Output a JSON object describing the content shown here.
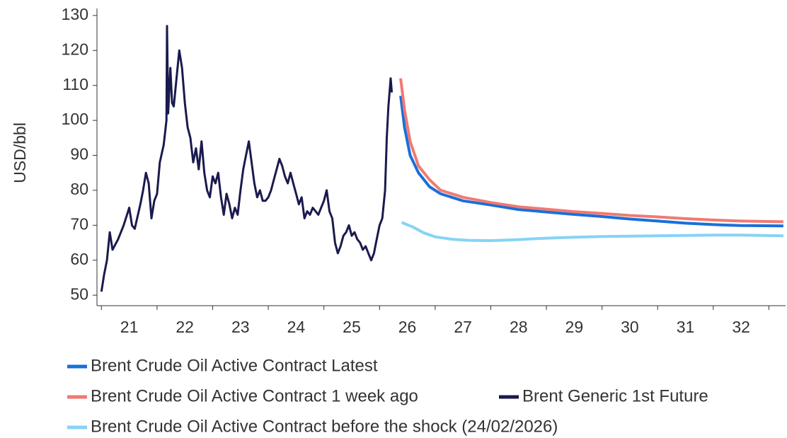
{
  "chart_data": {
    "type": "line",
    "y_label": "USD/bbl",
    "xlim": [
      20.92,
      33.3
    ],
    "xticks": [
      {
        "value": 21.5,
        "label": "21"
      },
      {
        "value": 22.5,
        "label": "22"
      },
      {
        "value": 23.5,
        "label": "23"
      },
      {
        "value": 24.5,
        "label": "24"
      },
      {
        "value": 25.5,
        "label": "25"
      },
      {
        "value": 26.5,
        "label": "26"
      },
      {
        "value": 27.5,
        "label": "27"
      },
      {
        "value": 28.5,
        "label": "28"
      },
      {
        "value": 29.5,
        "label": "29"
      },
      {
        "value": 30.5,
        "label": "30"
      },
      {
        "value": 31.5,
        "label": "31"
      },
      {
        "value": 32.5,
        "label": "32"
      }
    ],
    "xminor_ticks": [
      21,
      22,
      23,
      24,
      25,
      26,
      27,
      28,
      29,
      30,
      31,
      32,
      33
    ],
    "ylim": [
      47,
      132
    ],
    "yticks": [
      50,
      60,
      70,
      80,
      90,
      100,
      110,
      120,
      130
    ],
    "grid": false,
    "series": [
      {
        "name": "Brent Crude Oil Active Contract Latest",
        "color": "#1a6fd9",
        "x": [
          26.38,
          26.45,
          26.55,
          26.7,
          26.9,
          27.1,
          27.5,
          28,
          28.5,
          29,
          29.5,
          30,
          30.5,
          31,
          31.5,
          32,
          32.5,
          33.26
        ],
        "values": [
          107,
          98,
          90,
          85,
          81,
          79,
          77,
          75.8,
          74.5,
          73.8,
          73.1,
          72.5,
          71.8,
          71.2,
          70.6,
          70.2,
          69.9,
          69.8
        ]
      },
      {
        "name": "Brent Crude Oil Active Contract 1 week ago",
        "color": "#f07a72",
        "x": [
          26.38,
          26.45,
          26.55,
          26.7,
          26.9,
          27.1,
          27.5,
          28,
          28.5,
          29,
          29.5,
          30,
          30.5,
          31,
          31.5,
          32,
          32.5,
          33.26
        ],
        "values": [
          112,
          103,
          94,
          87,
          83,
          80,
          78,
          76.5,
          75.3,
          74.6,
          73.9,
          73.4,
          72.8,
          72.4,
          71.9,
          71.5,
          71.2,
          71
        ]
      },
      {
        "name": "Brent Generic 1st Future",
        "color": "#1a1a4e",
        "x": [
          21.0,
          21.05,
          21.1,
          21.15,
          21.2,
          21.3,
          21.4,
          21.5,
          21.55,
          21.6,
          21.7,
          21.75,
          21.8,
          21.85,
          21.9,
          21.95,
          22.0,
          22.05,
          22.12,
          22.17,
          22.18,
          22.2,
          22.24,
          22.27,
          22.3,
          22.35,
          22.4,
          22.45,
          22.5,
          22.55,
          22.6,
          22.65,
          22.7,
          22.75,
          22.8,
          22.85,
          22.9,
          22.95,
          23.0,
          23.05,
          23.1,
          23.15,
          23.2,
          23.25,
          23.3,
          23.35,
          23.4,
          23.45,
          23.5,
          23.55,
          23.6,
          23.65,
          23.7,
          23.75,
          23.8,
          23.85,
          23.9,
          23.95,
          24.0,
          24.05,
          24.1,
          24.15,
          24.2,
          24.25,
          24.3,
          24.35,
          24.4,
          24.45,
          24.5,
          24.55,
          24.6,
          24.65,
          24.7,
          24.75,
          24.8,
          24.85,
          24.9,
          24.95,
          25.0,
          25.05,
          25.1,
          25.15,
          25.2,
          25.25,
          25.3,
          25.35,
          25.4,
          25.45,
          25.5,
          25.55,
          25.6,
          25.65,
          25.7,
          25.75,
          25.8,
          25.85,
          25.9,
          25.95,
          26.0,
          26.05,
          26.1,
          26.13,
          26.16,
          26.2,
          26.22
        ],
        "values": [
          51,
          56,
          60,
          68,
          63,
          66,
          70,
          75,
          70,
          69,
          76,
          80,
          85,
          82,
          72,
          77,
          79,
          88,
          93,
          100,
          127,
          102,
          115,
          105,
          104,
          112,
          120,
          115,
          105,
          98,
          95,
          88,
          92,
          86,
          94,
          85,
          80,
          78,
          84,
          82,
          85,
          78,
          73,
          79,
          76,
          72,
          75,
          73,
          80,
          86,
          90,
          94,
          88,
          82,
          78,
          80,
          77,
          77,
          78,
          80,
          83,
          86,
          89,
          87,
          84,
          82,
          85,
          82,
          79,
          76,
          78,
          72,
          74,
          73,
          75,
          74,
          73,
          75,
          77,
          80,
          74,
          72,
          65,
          62,
          64,
          67,
          68,
          70,
          67,
          68,
          66,
          65,
          63,
          64,
          62,
          60,
          62,
          66,
          70,
          72,
          80,
          95,
          104,
          112,
          108
        ]
      },
      {
        "name": "Brent Crude Oil Active Contract before the shock (24/02/2026)",
        "color": "#87d3f5",
        "x": [
          26.4,
          26.6,
          26.8,
          27.0,
          27.3,
          27.6,
          28,
          28.5,
          29,
          29.5,
          30,
          30.5,
          31,
          31.5,
          32,
          32.5,
          33.26
        ],
        "values": [
          70.8,
          69.5,
          67.8,
          66.7,
          66,
          65.7,
          65.6,
          65.9,
          66.3,
          66.6,
          66.8,
          66.9,
          67,
          67.1,
          67.2,
          67.2,
          67
        ]
      }
    ]
  }
}
